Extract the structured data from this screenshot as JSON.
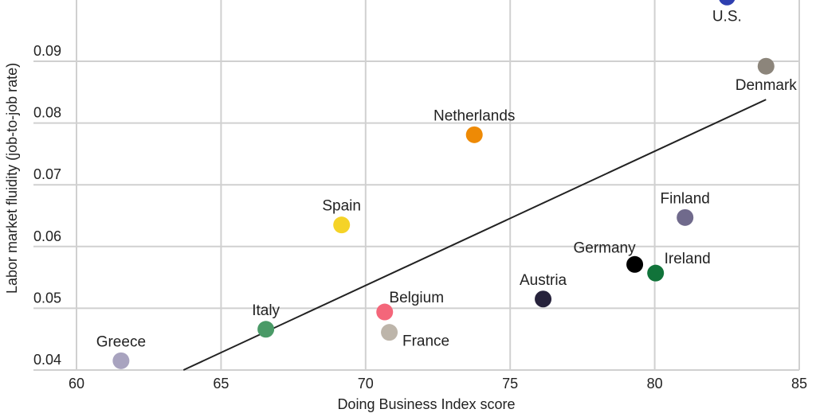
{
  "chart_data": {
    "type": "scatter",
    "title": "",
    "xlabel": "Doing Business Index score",
    "ylabel": "Labor market fluidity (job-to-job rate)",
    "xlim": [
      60,
      85
    ],
    "ylim": [
      0.04,
      0.1
    ],
    "x_ticks": [
      "60",
      "65",
      "70",
      "75",
      "80",
      "85"
    ],
    "y_ticks": [
      "0.04",
      "0.05",
      "0.06",
      "0.07",
      "0.08",
      "0.09"
    ],
    "grid": true,
    "legend": "none (points labeled directly)",
    "points": [
      {
        "label": "U.S.",
        "x": 82.5,
        "y": 0.1004,
        "color": "#2E3FB0",
        "label_pos": "below"
      },
      {
        "label": "Denmark",
        "x": 83.85,
        "y": 0.0892,
        "color": "#8C857B",
        "label_pos": "below"
      },
      {
        "label": "Netherlands",
        "x": 73.76,
        "y": 0.0781,
        "color": "#EE8A05",
        "label_pos": "above"
      },
      {
        "label": "Spain",
        "x": 69.17,
        "y": 0.0635,
        "color": "#F5D327",
        "label_pos": "above"
      },
      {
        "label": "Finland",
        "x": 81.05,
        "y": 0.0647,
        "color": "#706A8C",
        "label_pos": "above"
      },
      {
        "label": "Germany",
        "x": 79.31,
        "y": 0.0571,
        "color": "#000000",
        "label_pos": "above-left"
      },
      {
        "label": "Ireland",
        "x": 80.03,
        "y": 0.0557,
        "color": "#11733A",
        "label_pos": "above-right"
      },
      {
        "label": "Austria",
        "x": 76.14,
        "y": 0.0515,
        "color": "#26223B",
        "label_pos": "above"
      },
      {
        "label": "Belgium",
        "x": 70.66,
        "y": 0.0494,
        "color": "#F4667A",
        "label_pos": "above-right"
      },
      {
        "label": "France",
        "x": 70.82,
        "y": 0.0461,
        "color": "#BDB5AA",
        "label_pos": "below-right"
      },
      {
        "label": "Italy",
        "x": 66.55,
        "y": 0.0466,
        "color": "#4A9A67",
        "label_pos": "above"
      },
      {
        "label": "Greece",
        "x": 61.54,
        "y": 0.0415,
        "color": "#A8A3BF",
        "label_pos": "above"
      }
    ],
    "trendline": {
      "x": [
        63.7,
        83.85
      ],
      "y": [
        0.04,
        0.0838
      ],
      "color": "#222222"
    }
  },
  "axes": {
    "xlabel": "Doing Business Index score",
    "ylabel": "Labor market fluidity (job-to-job rate)"
  }
}
